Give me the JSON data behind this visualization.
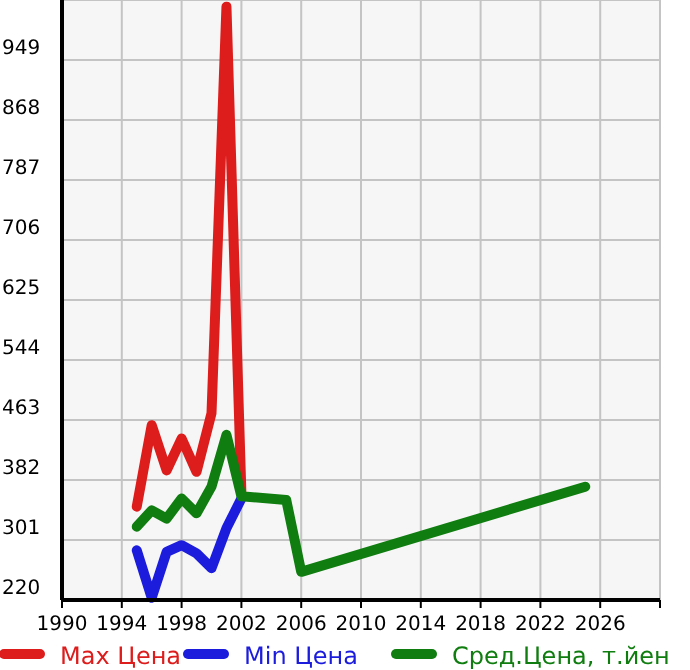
{
  "chart_data": {
    "type": "line",
    "x": [
      1995,
      1996,
      1997,
      1998,
      1999,
      2000,
      2001,
      2002
    ],
    "series": [
      {
        "name": "Max Цена",
        "color": "#dd1c1c",
        "values": [
          346,
          456,
          395,
          438,
          393,
          472,
          1021,
          364
        ]
      },
      {
        "name": "Min Цена",
        "color": "#1c1cdd",
        "values": [
          287,
          223,
          285,
          294,
          283,
          263,
          317,
          357
        ]
      },
      {
        "name": "Сред.Цена, т.йен",
        "color": "#0f7d0f",
        "x": [
          1995,
          1996,
          1997,
          1998,
          1999,
          2000,
          2001,
          2002,
          2005,
          2006,
          2025
        ],
        "values": [
          319,
          341,
          330,
          357,
          337,
          373,
          443,
          360,
          355,
          258,
          373
        ]
      }
    ],
    "xlim": [
      1990,
      2030
    ],
    "xticks": [
      1990,
      1994,
      1998,
      2002,
      2006,
      2010,
      2014,
      2018,
      2022,
      2026
    ],
    "ylim": [
      220,
      1030
    ],
    "yticks": [
      220,
      301,
      382,
      463,
      544,
      625,
      706,
      787,
      868,
      949
    ],
    "grid": true,
    "legend": "bottom",
    "marker": "none",
    "line_style": "solid"
  }
}
